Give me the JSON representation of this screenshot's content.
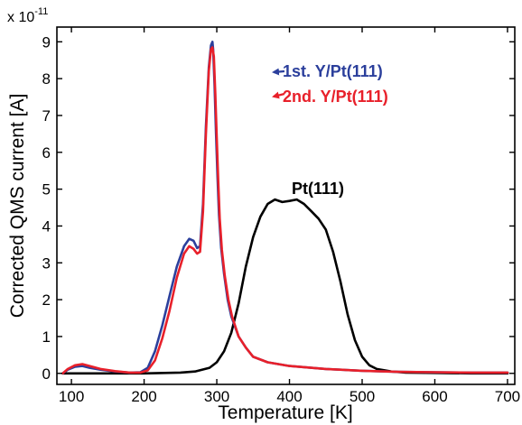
{
  "chart_data": {
    "type": "line",
    "title": "",
    "xlabel": "Temperature [K]",
    "ylabel": "Corrected QMS current [A]",
    "y_multiplier": "x 10",
    "y_multiplier_exponent": "-11",
    "xlim": [
      80,
      710
    ],
    "ylim": [
      -0.3,
      9.4
    ],
    "x_ticks": [
      100,
      200,
      300,
      400,
      500,
      600,
      700
    ],
    "y_ticks": [
      0,
      1,
      2,
      3,
      4,
      5,
      6,
      7,
      8,
      9
    ],
    "grid": false,
    "legend": "none",
    "colors": {
      "first": "#2b3f9c",
      "second": "#e8202a",
      "pt": "#000000"
    },
    "series": [
      {
        "key": "first",
        "name": "1st. Y/Pt(111)",
        "x": [
          88,
          95,
          105,
          115,
          125,
          140,
          160,
          180,
          195,
          205,
          215,
          225,
          235,
          245,
          255,
          262,
          268,
          273,
          277,
          281,
          285,
          289,
          292,
          294,
          295,
          297,
          299,
          301,
          303,
          306,
          310,
          315,
          320,
          330,
          340,
          350,
          370,
          400,
          450,
          500,
          550,
          600,
          650,
          700
        ],
        "y": [
          0.0,
          0.1,
          0.18,
          0.2,
          0.15,
          0.1,
          0.05,
          0.02,
          0.03,
          0.15,
          0.6,
          1.3,
          2.1,
          2.9,
          3.45,
          3.65,
          3.6,
          3.4,
          3.45,
          4.6,
          6.7,
          8.3,
          8.9,
          9.0,
          8.8,
          7.8,
          6.5,
          5.3,
          4.3,
          3.4,
          2.7,
          2.0,
          1.55,
          1.0,
          0.7,
          0.45,
          0.3,
          0.2,
          0.12,
          0.07,
          0.04,
          0.03,
          0.02,
          0.02
        ]
      },
      {
        "key": "second",
        "name": "2nd. Y/Pt(111)",
        "x": [
          88,
          95,
          105,
          115,
          125,
          140,
          160,
          180,
          195,
          205,
          215,
          225,
          235,
          245,
          255,
          262,
          268,
          273,
          277,
          281,
          285,
          289,
          292,
          294,
          296,
          298,
          300,
          302,
          304,
          307,
          311,
          316,
          321,
          330,
          340,
          350,
          370,
          400,
          450,
          500,
          550,
          600,
          650,
          700
        ],
        "y": [
          0.0,
          0.12,
          0.22,
          0.25,
          0.2,
          0.12,
          0.06,
          0.02,
          0.02,
          0.08,
          0.35,
          0.95,
          1.7,
          2.6,
          3.25,
          3.45,
          3.38,
          3.25,
          3.3,
          4.4,
          6.5,
          8.2,
          8.8,
          8.85,
          8.6,
          7.6,
          6.4,
          5.2,
          4.2,
          3.35,
          2.65,
          2.0,
          1.55,
          1.0,
          0.7,
          0.45,
          0.3,
          0.2,
          0.12,
          0.07,
          0.04,
          0.03,
          0.02,
          0.02
        ]
      },
      {
        "key": "pt",
        "name": "Pt(111)",
        "x": [
          88,
          150,
          200,
          250,
          270,
          290,
          300,
          310,
          320,
          330,
          340,
          350,
          360,
          370,
          380,
          390,
          400,
          410,
          420,
          430,
          440,
          450,
          460,
          470,
          480,
          490,
          500,
          510,
          520,
          540,
          560,
          600,
          650,
          700
        ],
        "y": [
          0.0,
          0.0,
          0.0,
          0.02,
          0.05,
          0.15,
          0.3,
          0.6,
          1.1,
          1.9,
          2.9,
          3.7,
          4.25,
          4.6,
          4.72,
          4.65,
          4.68,
          4.72,
          4.6,
          4.4,
          4.2,
          3.9,
          3.3,
          2.5,
          1.6,
          0.9,
          0.45,
          0.22,
          0.12,
          0.05,
          0.02,
          0.01,
          0.0,
          0.0
        ]
      }
    ],
    "annotations": [
      {
        "key": "first",
        "text": "1st. Y/Pt(111)"
      },
      {
        "key": "second",
        "text": "2nd. Y/Pt(111)"
      },
      {
        "key": "pt",
        "text": "Pt(111)"
      }
    ]
  }
}
